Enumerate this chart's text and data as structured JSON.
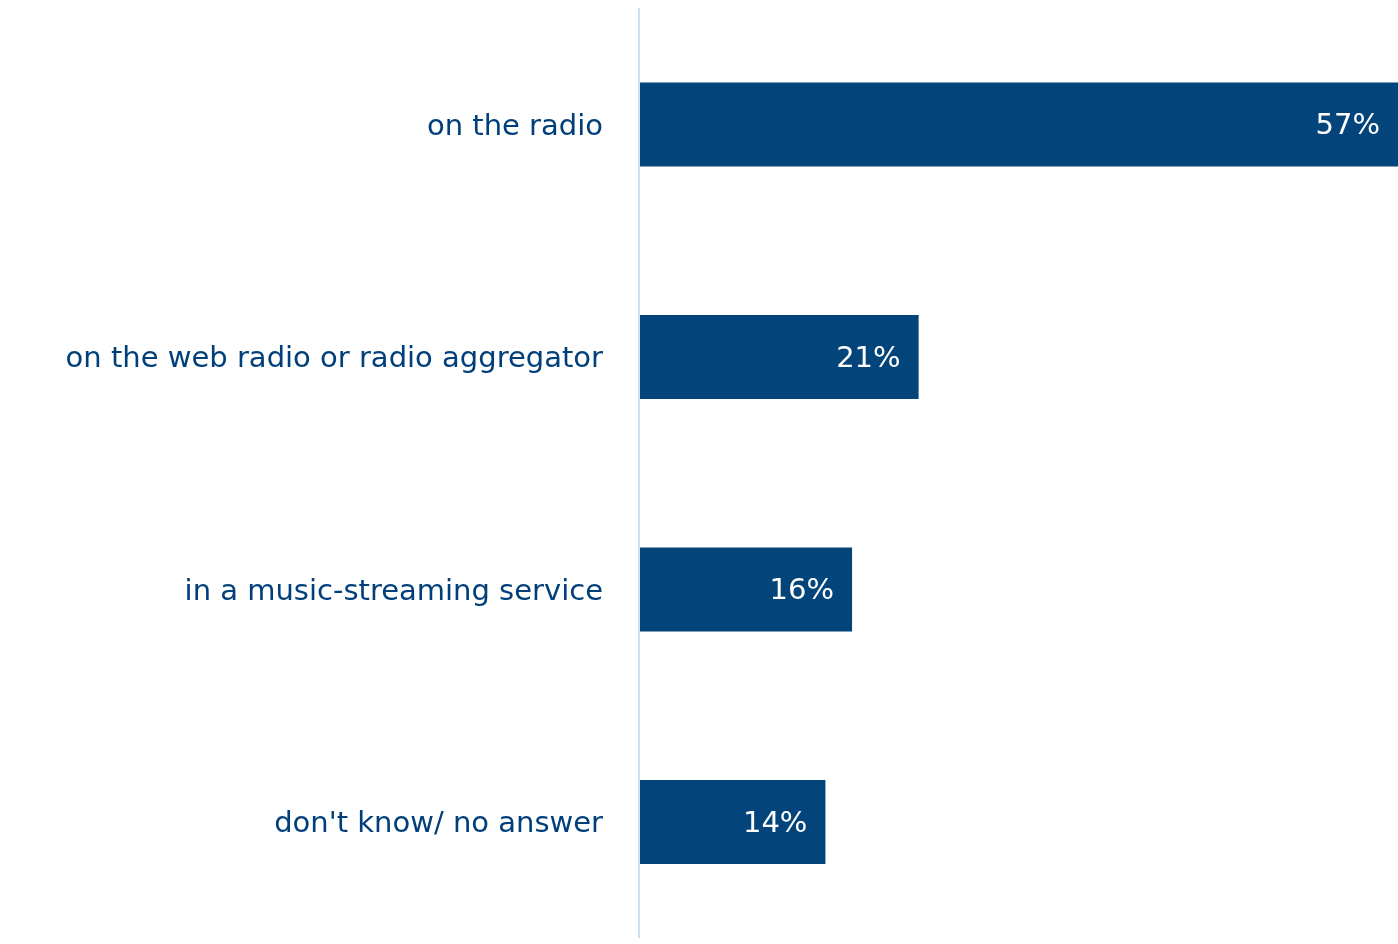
{
  "chart_data": {
    "type": "bar",
    "orientation": "horizontal",
    "categories": [
      "on the radio",
      "on the web radio or radio aggregator",
      "in a music-streaming service",
      "don't know/ no answer"
    ],
    "values": [
      57,
      21,
      16,
      14
    ],
    "value_labels": [
      "57%",
      "21%",
      "16%",
      "14%"
    ],
    "color": "#03457b"
  }
}
